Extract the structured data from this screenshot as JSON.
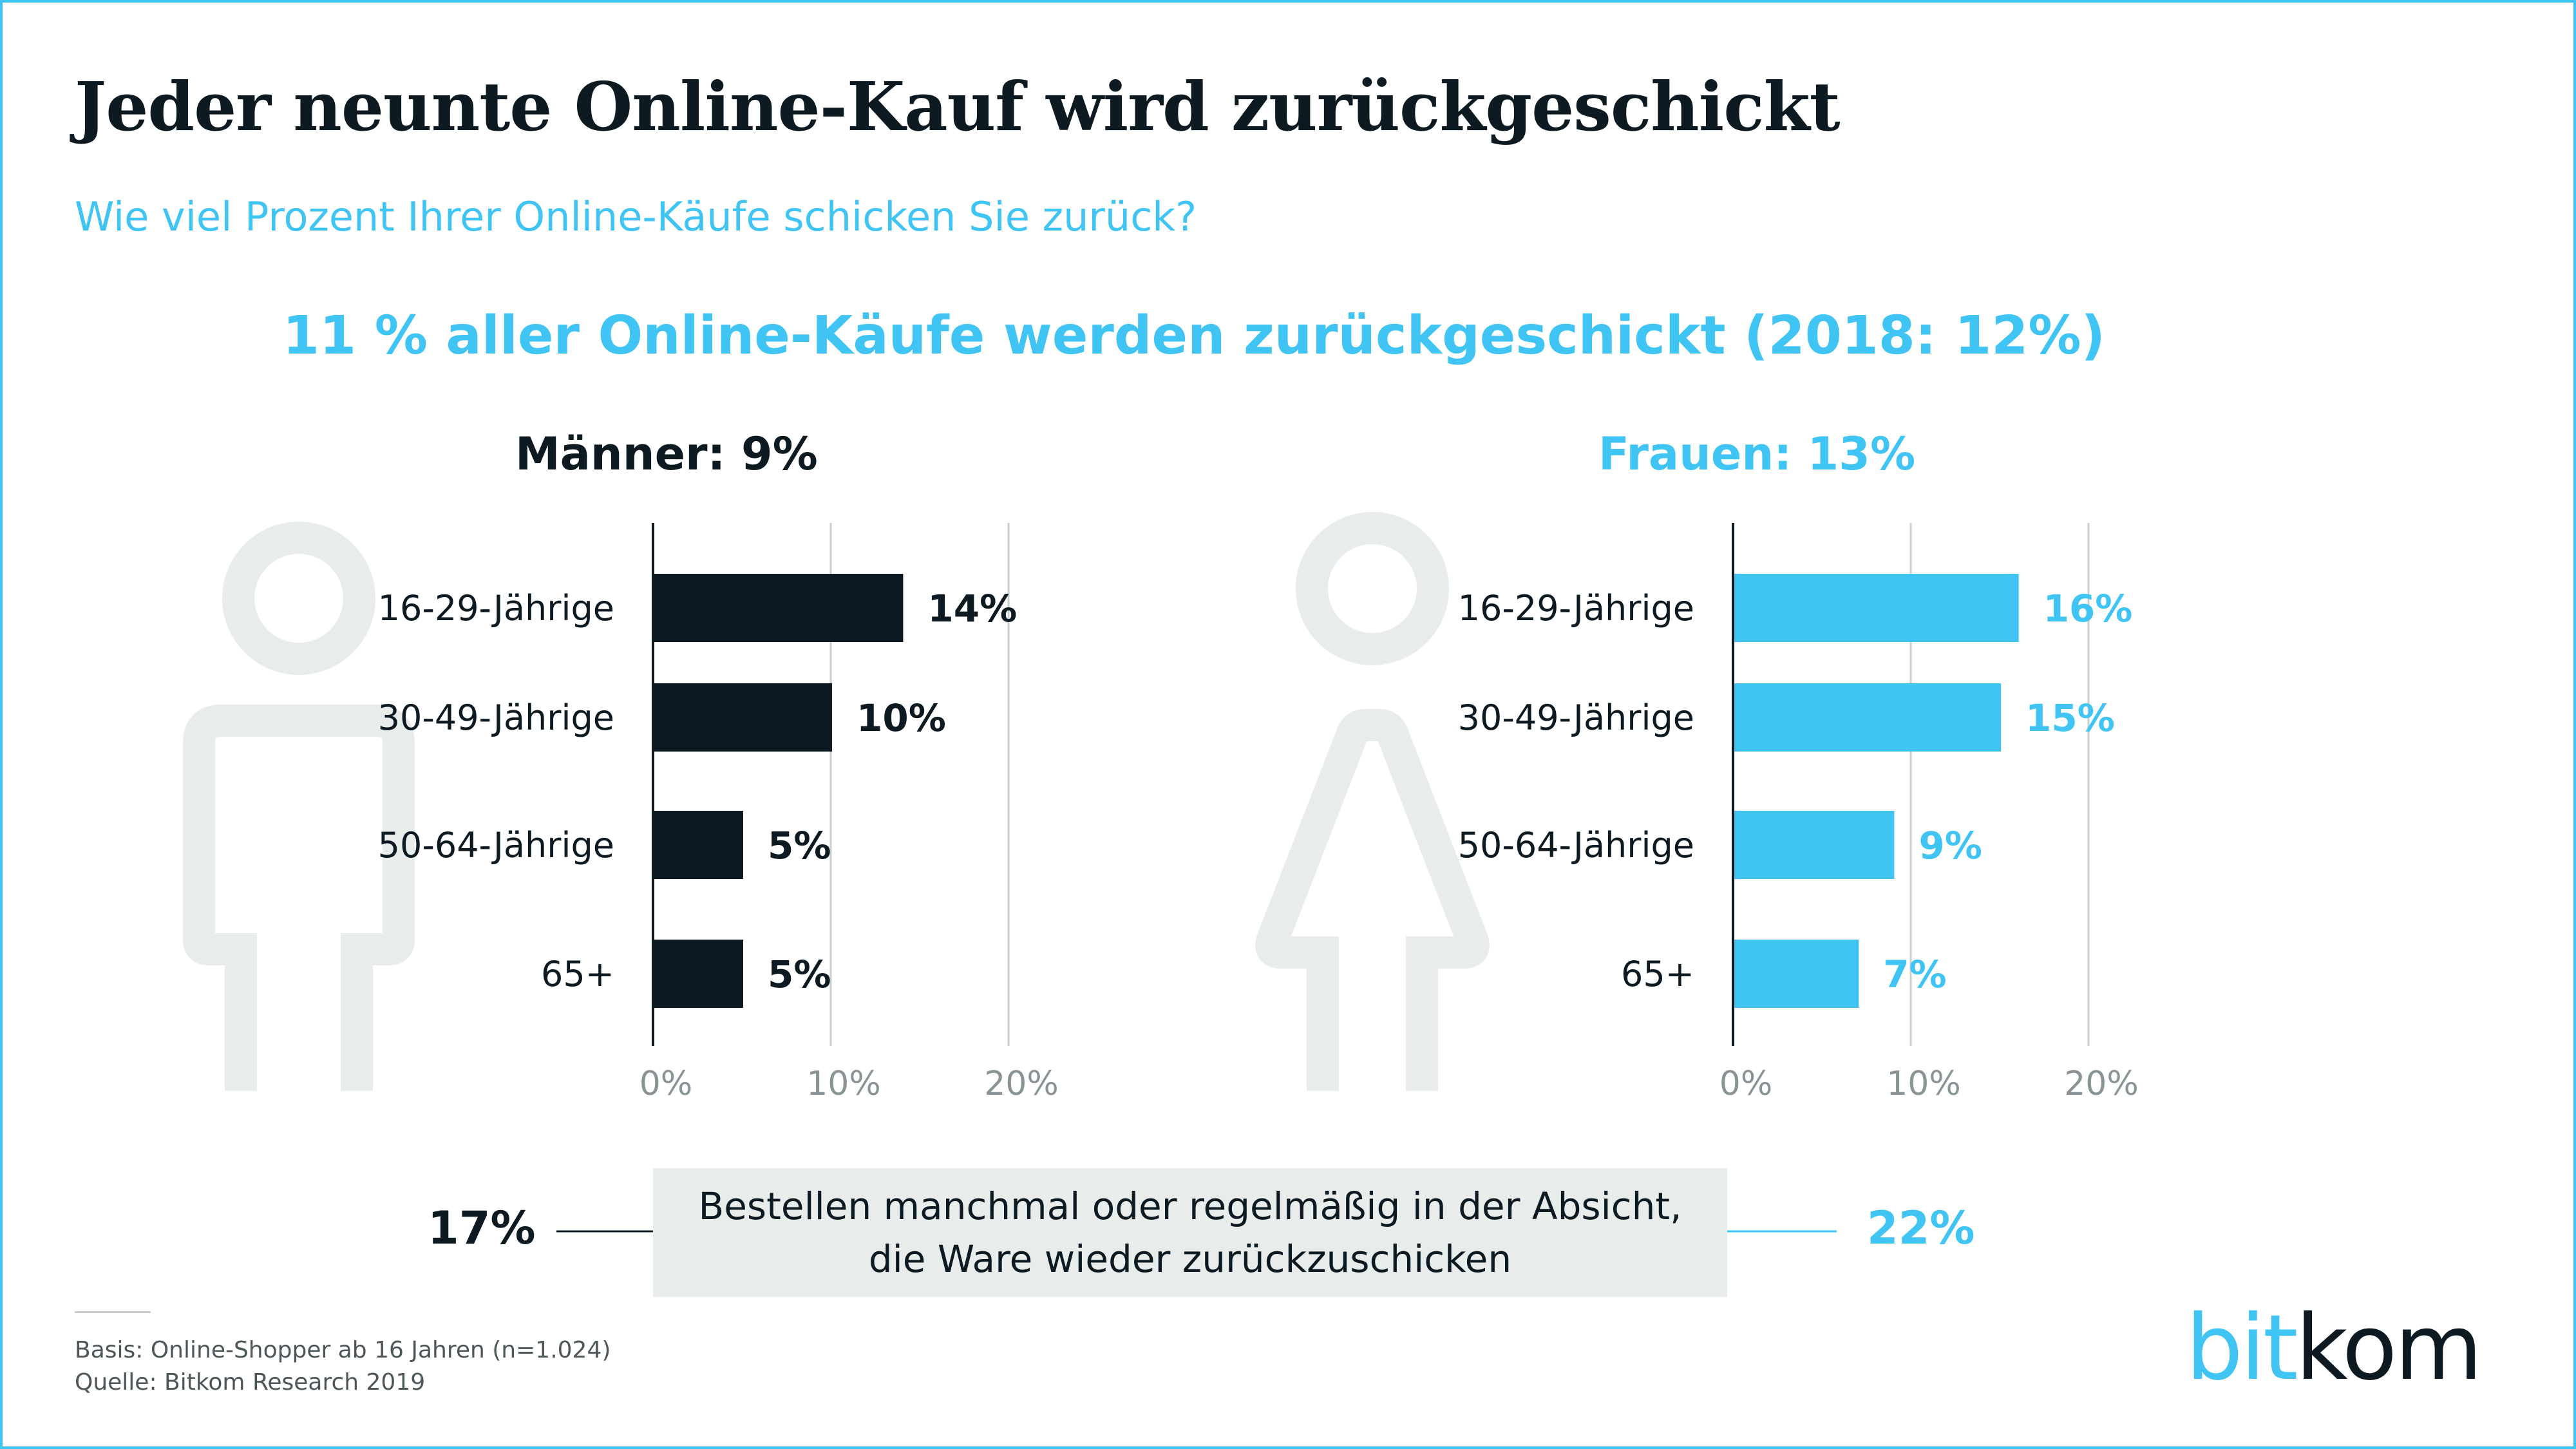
{
  "title": "Jeder neunte Online-Kauf wird zurückgeschickt",
  "subtitle": "Wie viel Prozent Ihrer Online-Käufe schicken Sie zurück?",
  "headline": "11 % aller Online-Käufe werden zurückgeschickt (2018: 12%)",
  "colors": {
    "dark": "#0d1a21",
    "accent": "#3fc4f4",
    "grid": "#c9cfce",
    "icon": "#e8eceb",
    "box": "#e8eceb"
  },
  "chart_data": [
    {
      "type": "bar",
      "orientation": "horizontal",
      "title": "Männer: 9%",
      "categories": [
        "16-29-Jährige",
        "30-49-Jährige",
        "50-64-Jährige",
        "65+"
      ],
      "values": [
        14,
        10,
        5,
        5
      ],
      "value_labels": [
        "14%",
        "10%",
        "5%",
        "5%"
      ],
      "xlim": [
        0,
        20
      ],
      "ticks": [
        "0%",
        "10%",
        "20%"
      ],
      "grid": true,
      "icon": "man-icon"
    },
    {
      "type": "bar",
      "orientation": "horizontal",
      "title": "Frauen: 13%",
      "categories": [
        "16-29-Jährige",
        "30-49-Jährige",
        "50-64-Jährige",
        "65+"
      ],
      "values": [
        16,
        15,
        9,
        7
      ],
      "value_labels": [
        "16%",
        "15%",
        "9%",
        "7%"
      ],
      "xlim": [
        0,
        20
      ],
      "ticks": [
        "0%",
        "10%",
        "20%"
      ],
      "grid": true,
      "icon": "woman-icon"
    }
  ],
  "intent": {
    "text_line1": "Bestellen manchmal oder regelmäßig in der Absicht,",
    "text_line2": "die Ware wieder zurückzuschicken",
    "men_value": "17%",
    "women_value": "22%"
  },
  "footer": {
    "basis": "Basis: Online-Shopper ab 16 Jahren (n=1.024)",
    "source": "Quelle: Bitkom Research 2019"
  },
  "logo": {
    "part1": "bit",
    "part2": "kom"
  }
}
